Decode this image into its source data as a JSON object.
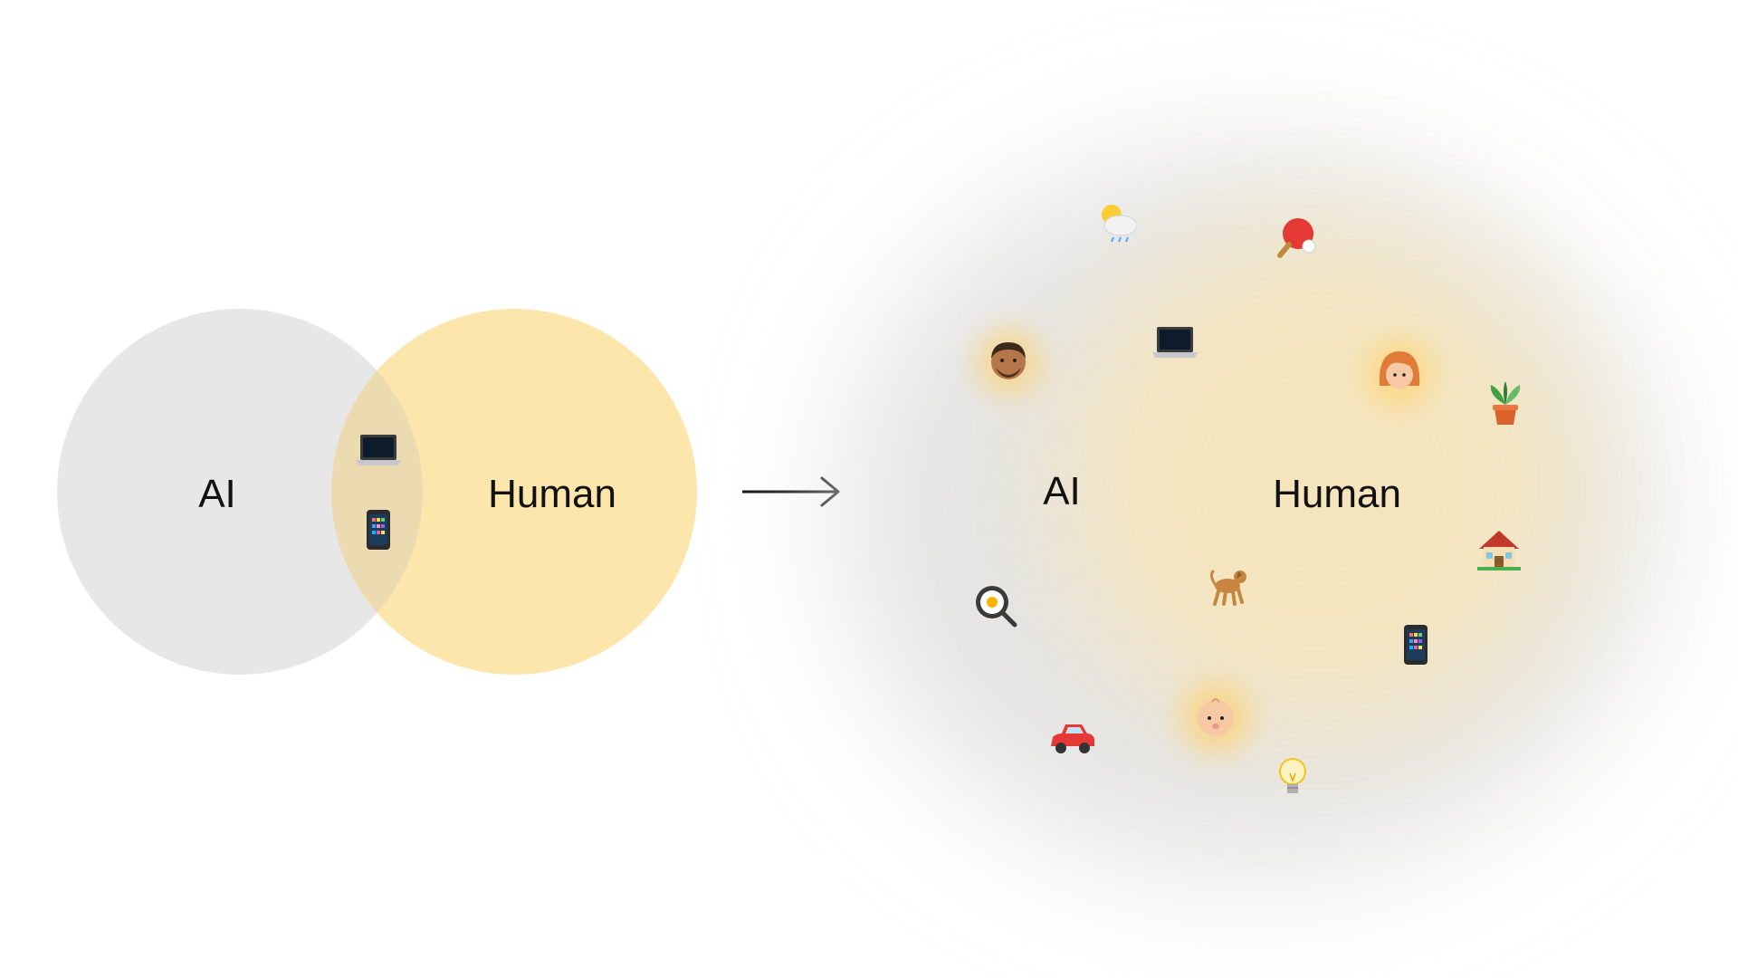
{
  "before": {
    "left_circle_label": "AI",
    "right_circle_label": "Human",
    "shared_icons": [
      "laptop-icon",
      "mobile-phone-icon"
    ]
  },
  "after": {
    "left_label": "AI",
    "right_label": "Human",
    "icons": [
      "sun-behind-rain-cloud-icon",
      "ping-pong-icon",
      "man-icon",
      "laptop-icon",
      "woman-red-hair-icon",
      "potted-plant-icon",
      "house-icon",
      "dog-icon",
      "frying-pan-egg-icon",
      "mobile-phone-icon",
      "baby-icon",
      "car-icon",
      "light-bulb-icon"
    ]
  },
  "colors": {
    "ai_gray": "#e6e6e6",
    "human_yellow": "#fde6a8",
    "overlap": "#efdcaa",
    "arrow": "#111111"
  }
}
